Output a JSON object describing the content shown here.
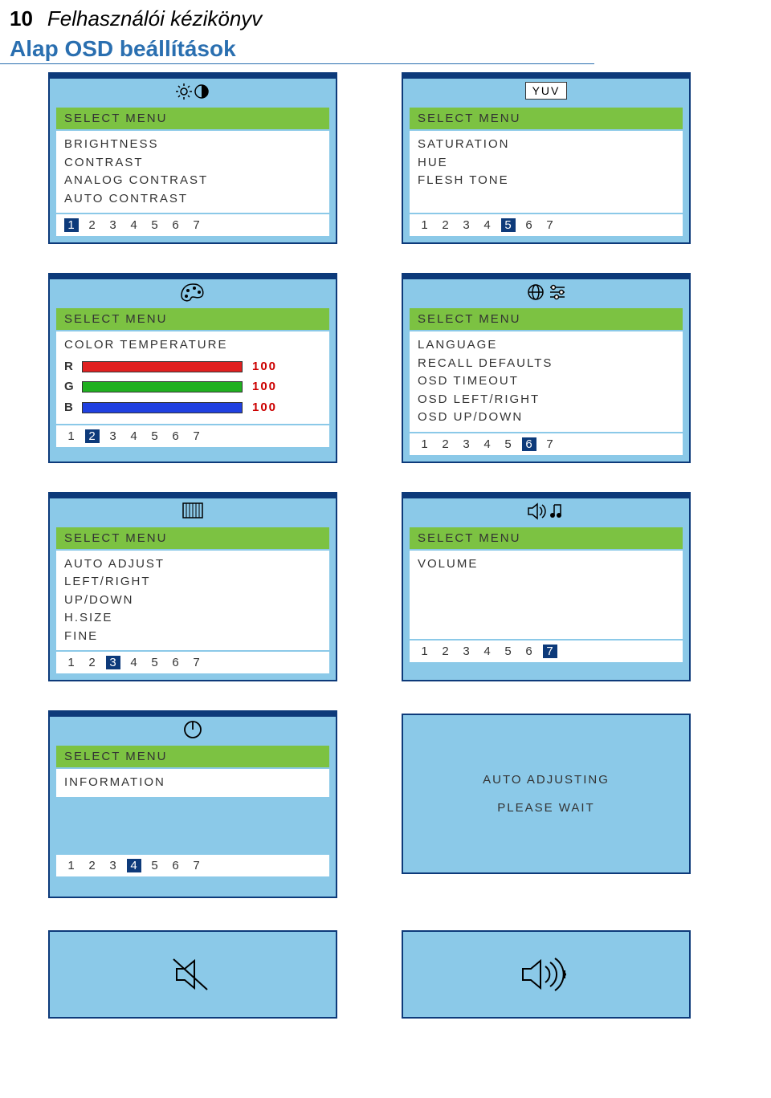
{
  "header": {
    "page_num": "10",
    "title": "Felhasználói kézikönyv"
  },
  "subtitle": "Alap OSD beállítások",
  "panels": {
    "brightness": {
      "header": "SELECT MENU",
      "items": [
        "BRIGHTNESS",
        "CONTRAST",
        "ANALOG CONTRAST",
        "AUTO CONTRAST"
      ],
      "active": 1
    },
    "yuv": {
      "tag": "YUV",
      "header": "SELECT MENU",
      "items": [
        "SATURATION",
        "HUE",
        "FLESH TONE"
      ],
      "active": 5
    },
    "color": {
      "header": "SELECT MENU",
      "body_label": "COLOR TEMPERATURE",
      "rgb": {
        "R": 100,
        "G": 100,
        "B": 100
      },
      "active": 2
    },
    "language": {
      "header": "SELECT MENU",
      "items": [
        "LANGUAGE",
        "RECALL DEFAULTS",
        "OSD TIMEOUT",
        "OSD LEFT/RIGHT",
        "OSD UP/DOWN"
      ],
      "active": 6
    },
    "auto": {
      "header": "SELECT MENU",
      "items": [
        "AUTO ADJUST",
        "LEFT/RIGHT",
        "UP/DOWN",
        "H.SIZE",
        "FINE"
      ],
      "active": 3
    },
    "volume": {
      "header": "SELECT MENU",
      "items": [
        "VOLUME"
      ],
      "active": 7
    },
    "info": {
      "header": "SELECT MENU",
      "items": [
        "INFORMATION"
      ],
      "active": 4
    },
    "adjusting": {
      "line1": "AUTO ADJUSTING",
      "line2": "PLEASE WAIT"
    }
  },
  "pager_nums": [
    "1",
    "2",
    "3",
    "4",
    "5",
    "6",
    "7"
  ],
  "colors": {
    "panel_bg": "#8bc9e8",
    "panel_border": "#0d3a7a",
    "green": "#7cc242",
    "subtitle": "#2a6fb0"
  }
}
